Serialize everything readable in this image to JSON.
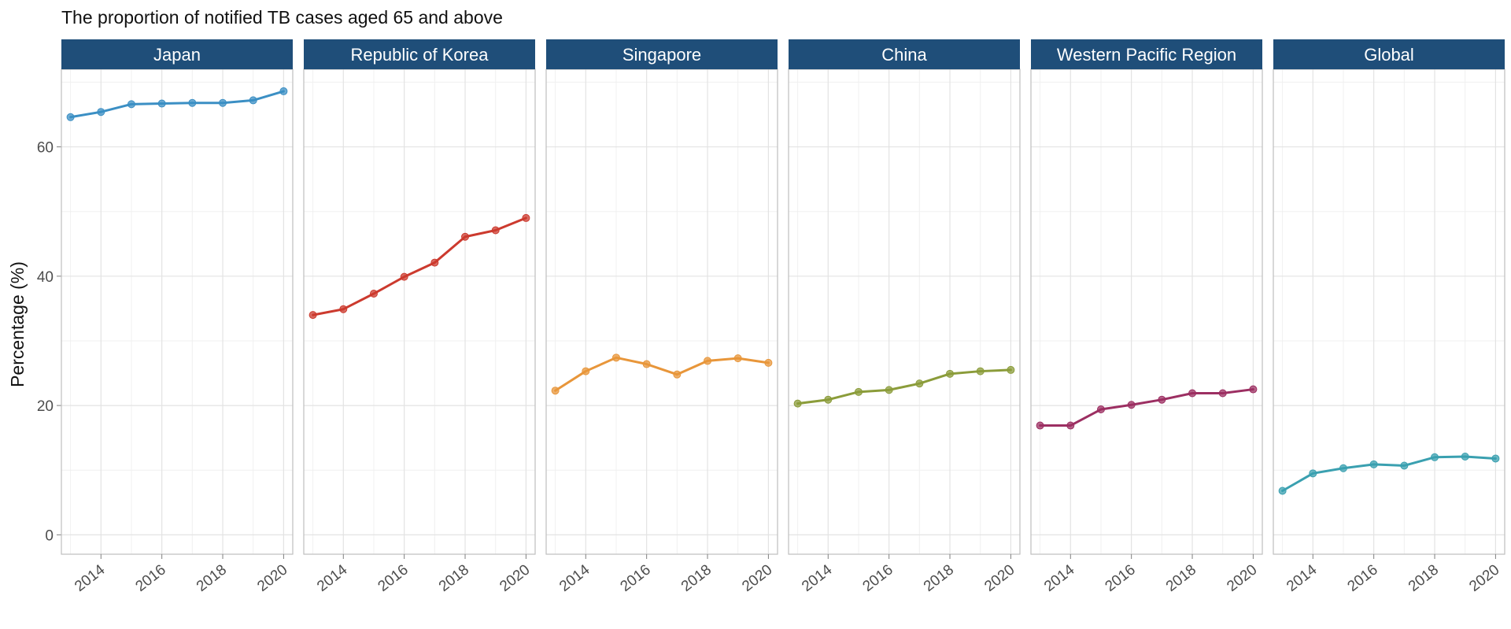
{
  "chart_data": {
    "type": "line",
    "title": "The proportion of notified TB cases aged 65 and above",
    "ylabel": "Percentage (%)",
    "xlabel": "",
    "ylim": [
      -3,
      72
    ],
    "yticks": [
      0,
      20,
      40,
      60
    ],
    "xlim": [
      2012.7,
      2020.3
    ],
    "xticks": [
      2014,
      2016,
      2018,
      2020
    ],
    "grid": true,
    "legend": "none",
    "x": [
      2013,
      2014,
      2015,
      2016,
      2017,
      2018,
      2019,
      2020
    ],
    "panels": [
      {
        "name": "Japan",
        "color": "#3b8fc4",
        "values": [
          64.6,
          65.4,
          66.6,
          66.7,
          66.8,
          66.8,
          67.2,
          68.6
        ]
      },
      {
        "name": "Republic of Korea",
        "color": "#cc3a2e",
        "values": [
          34.0,
          34.9,
          37.3,
          39.9,
          42.1,
          46.1,
          47.1,
          49.0
        ]
      },
      {
        "name": "Singapore",
        "color": "#e8963a",
        "values": [
          22.3,
          25.3,
          27.4,
          26.4,
          24.8,
          26.9,
          27.3,
          26.6
        ]
      },
      {
        "name": "China",
        "color": "#8b9c3a",
        "values": [
          20.3,
          20.9,
          22.1,
          22.4,
          23.4,
          24.9,
          25.3,
          25.5
        ]
      },
      {
        "name": "Western Pacific Region",
        "color": "#9c2f62",
        "values": [
          16.9,
          16.9,
          19.4,
          20.1,
          20.9,
          21.9,
          21.9,
          22.5
        ]
      },
      {
        "name": "Global",
        "color": "#3aa0b0",
        "values": [
          6.8,
          9.5,
          10.3,
          10.9,
          10.7,
          12.0,
          12.1,
          11.8
        ]
      }
    ]
  }
}
